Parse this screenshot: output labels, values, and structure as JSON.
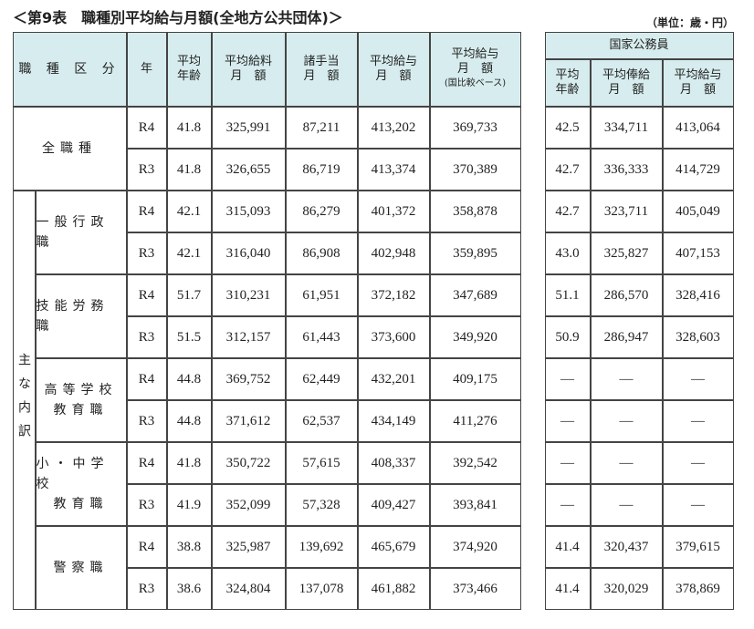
{
  "header": {
    "title": "＜第9表　職種別平均給与月額(全地方公共団体)＞",
    "unit": "（単位：歳・円）"
  },
  "table": {
    "columns": [
      [
        "職 種 区 分"
      ],
      [
        "年"
      ],
      [
        "平均",
        "年齢"
      ],
      [
        "平均給料",
        "月　額"
      ],
      [
        "諸手当",
        "月　額"
      ],
      [
        "平均給与",
        "月　額"
      ],
      [
        "平均給与",
        "月　額",
        "(国比較ベース)"
      ]
    ],
    "national_header": "国家公務員",
    "national_columns": [
      [
        "平均",
        "年齢"
      ],
      [
        "平均俸給",
        "月　額"
      ],
      [
        "平均給与",
        "月　額"
      ]
    ],
    "sub_label": "主な内訳",
    "groups": [
      {
        "name": [
          "全職種"
        ],
        "rows": [
          {
            "year": "R4",
            "local": [
              "41.8",
              "325,991",
              "87,211",
              "413,202",
              "369,733"
            ],
            "national": [
              "42.5",
              "334,711",
              "413,064"
            ]
          },
          {
            "year": "R3",
            "local": [
              "41.8",
              "326,655",
              "86,719",
              "413,374",
              "370,389"
            ],
            "national": [
              "42.7",
              "336,333",
              "414,729"
            ]
          }
        ]
      },
      {
        "name": [
          "一般行政職"
        ],
        "rows": [
          {
            "year": "R4",
            "local": [
              "42.1",
              "315,093",
              "86,279",
              "401,372",
              "358,878"
            ],
            "national": [
              "42.7",
              "323,711",
              "405,049"
            ]
          },
          {
            "year": "R3",
            "local": [
              "42.1",
              "316,040",
              "86,908",
              "402,948",
              "359,895"
            ],
            "national": [
              "43.0",
              "325,827",
              "407,153"
            ]
          }
        ]
      },
      {
        "name": [
          "技能労務職"
        ],
        "rows": [
          {
            "year": "R4",
            "local": [
              "51.7",
              "310,231",
              "61,951",
              "372,182",
              "347,689"
            ],
            "national": [
              "51.1",
              "286,570",
              "328,416"
            ]
          },
          {
            "year": "R3",
            "local": [
              "51.5",
              "312,157",
              "61,443",
              "373,600",
              "349,920"
            ],
            "national": [
              "50.9",
              "286,947",
              "328,603"
            ]
          }
        ]
      },
      {
        "name": [
          "高等学校",
          "教育職"
        ],
        "rows": [
          {
            "year": "R4",
            "local": [
              "44.8",
              "369,752",
              "62,449",
              "432,201",
              "409,175"
            ],
            "national": [
              "—",
              "—",
              "—"
            ]
          },
          {
            "year": "R3",
            "local": [
              "44.8",
              "371,612",
              "62,537",
              "434,149",
              "411,276"
            ],
            "national": [
              "—",
              "—",
              "—"
            ]
          }
        ]
      },
      {
        "name": [
          "小・中学校",
          "教育職"
        ],
        "rows": [
          {
            "year": "R4",
            "local": [
              "41.8",
              "350,722",
              "57,615",
              "408,337",
              "392,542"
            ],
            "national": [
              "—",
              "—",
              "—"
            ]
          },
          {
            "year": "R3",
            "local": [
              "41.9",
              "352,099",
              "57,328",
              "409,427",
              "393,841"
            ],
            "national": [
              "—",
              "—",
              "—"
            ]
          }
        ]
      },
      {
        "name": [
          "警察職"
        ],
        "rows": [
          {
            "year": "R4",
            "local": [
              "38.8",
              "325,987",
              "139,692",
              "465,679",
              "374,920"
            ],
            "national": [
              "41.4",
              "320,437",
              "379,615"
            ]
          },
          {
            "year": "R3",
            "local": [
              "38.6",
              "324,804",
              "137,078",
              "461,882",
              "373,466"
            ],
            "national": [
              "41.4",
              "320,029",
              "378,869"
            ]
          }
        ]
      }
    ]
  }
}
